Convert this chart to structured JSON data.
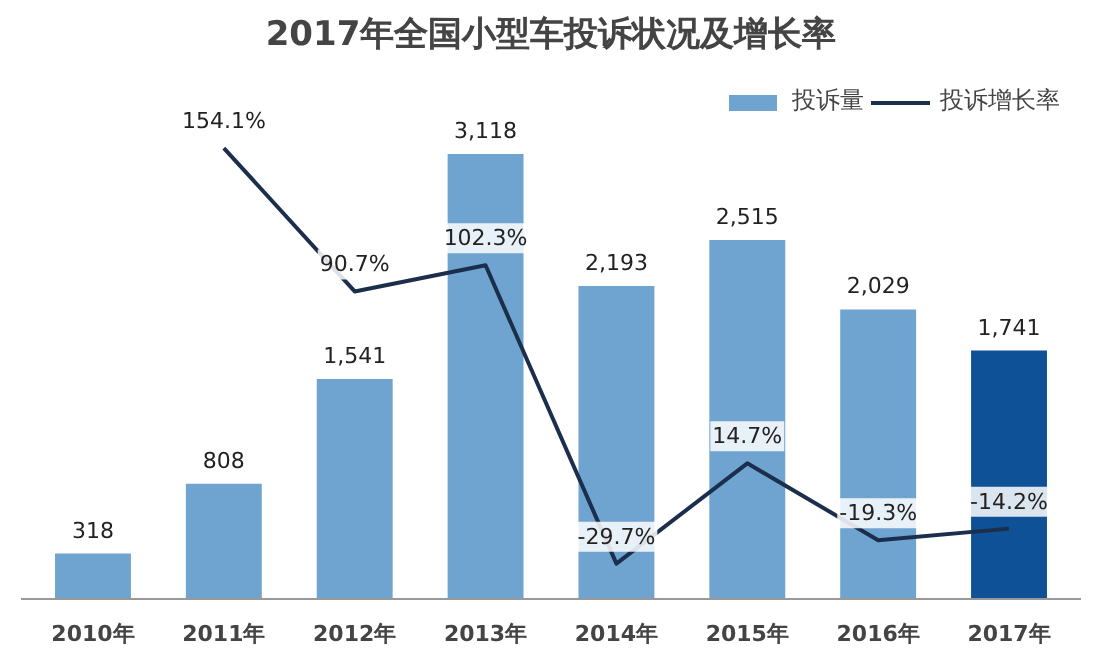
{
  "chart_data": {
    "type": "bar",
    "title": "2017年全国小型车投诉状况及增长率",
    "categories": [
      "2010年",
      "2011年",
      "2012年",
      "2013年",
      "2014年",
      "2015年",
      "2016年",
      "2017年"
    ],
    "series": [
      {
        "name": "投诉量",
        "colors": [
          "#6ea4cf",
          "#6ea4cf",
          "#6ea4cf",
          "#6ea4cf",
          "#6ea4cf",
          "#6ea4cf",
          "#6ea4cf",
          "#0f5196"
        ],
        "color": "#6ea4cf",
        "values": [
          318,
          808,
          1541,
          3118,
          2193,
          2515,
          2029,
          1741
        ],
        "value_labels": [
          "318",
          "808",
          "1,541",
          "3,118",
          "2,193",
          "2,515",
          "2,029",
          "1,741"
        ]
      },
      {
        "name": "投诉增长率",
        "type": "line",
        "axis": "y2",
        "color": "#1b2f4d",
        "values": [
          null,
          154.1,
          90.7,
          102.3,
          -29.7,
          14.7,
          -19.3,
          -14.2
        ],
        "value_labels": [
          null,
          "154.1%",
          "90.7%",
          "102.3%",
          "-29.7%",
          "14.7%",
          "-19.3%",
          "-14.2%"
        ]
      }
    ],
    "legend": "top right"
  }
}
